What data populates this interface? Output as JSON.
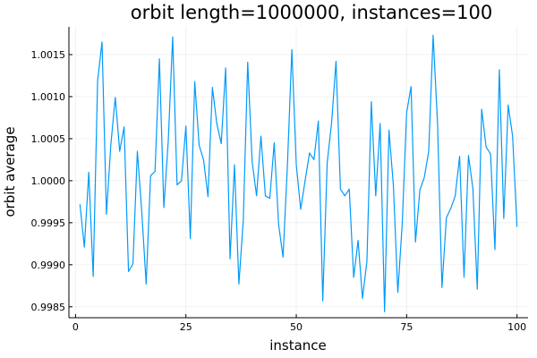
{
  "chart_data": {
    "type": "line",
    "title": "orbit length=1000000, instances=100",
    "xlabel": "instance",
    "ylabel": "orbit average",
    "xlim": [
      -1.5,
      102.5
    ],
    "ylim": [
      0.99837,
      1.00183
    ],
    "grid": true,
    "legend": "none",
    "color": "#009AFA",
    "x_ticks": [
      0,
      25,
      50,
      75,
      100
    ],
    "x_tick_labels": [
      "0",
      "25",
      "50",
      "75",
      "100"
    ],
    "y_ticks": [
      0.9985,
      0.999,
      0.9995,
      1.0,
      1.0005,
      1.001,
      1.0015
    ],
    "y_tick_labels": [
      "0.9985",
      "0.9990",
      "0.9995",
      "1.0000",
      "1.0005",
      "1.0010",
      "1.0015"
    ],
    "series": [
      {
        "name": "y1",
        "x": [
          1,
          2,
          3,
          4,
          5,
          6,
          7,
          8,
          9,
          10,
          11,
          12,
          13,
          14,
          15,
          16,
          17,
          18,
          19,
          20,
          21,
          22,
          23,
          24,
          25,
          26,
          27,
          28,
          29,
          30,
          31,
          32,
          33,
          34,
          35,
          36,
          37,
          38,
          39,
          40,
          41,
          42,
          43,
          44,
          45,
          46,
          47,
          48,
          49,
          50,
          51,
          52,
          53,
          54,
          55,
          56,
          57,
          58,
          59,
          60,
          61,
          62,
          63,
          64,
          65,
          66,
          67,
          68,
          69,
          70,
          71,
          72,
          73,
          74,
          75,
          76,
          77,
          78,
          79,
          80,
          81,
          82,
          83,
          84,
          85,
          86,
          87,
          88,
          89,
          90,
          91,
          92,
          93,
          94,
          95,
          96,
          97,
          98,
          99,
          100
        ],
        "values": [
          0.99972,
          0.99921,
          1.0001,
          0.99886,
          1.00119,
          1.00165,
          0.9996,
          1.00043,
          1.00099,
          1.00035,
          1.00064,
          0.99892,
          0.99901,
          1.00035,
          0.99963,
          0.99877,
          1.00006,
          1.00011,
          1.00145,
          0.99968,
          1.00047,
          1.00171,
          0.99995,
          1.0,
          1.00065,
          0.99931,
          1.00118,
          1.00042,
          1.00025,
          0.99981,
          1.00111,
          1.00068,
          1.00044,
          1.00134,
          0.99907,
          1.00019,
          0.99877,
          0.99953,
          1.00141,
          1.00023,
          0.99982,
          1.00053,
          0.99982,
          0.99979,
          1.00045,
          0.99948,
          0.99909,
          1.00019,
          1.00156,
          1.00019,
          0.99966,
          1.0,
          1.00033,
          1.00025,
          1.00071,
          0.99857,
          1.00021,
          1.00069,
          1.00142,
          0.9999,
          0.99982,
          0.9999,
          0.99885,
          0.99929,
          0.9986,
          0.99904,
          1.00094,
          0.99982,
          1.00068,
          0.99844,
          1.0006,
          0.99994,
          0.99867,
          0.99949,
          1.00081,
          1.00112,
          0.99927,
          0.99989,
          1.00004,
          1.00035,
          1.00173,
          1.00068,
          0.99873,
          0.99956,
          0.99967,
          0.99982,
          1.00029,
          0.99885,
          1.0003,
          0.99991,
          0.99871,
          1.00085,
          1.0004,
          1.00032,
          0.99918,
          1.00132,
          0.99955,
          1.0009,
          1.00053,
          0.99945
        ]
      }
    ]
  }
}
